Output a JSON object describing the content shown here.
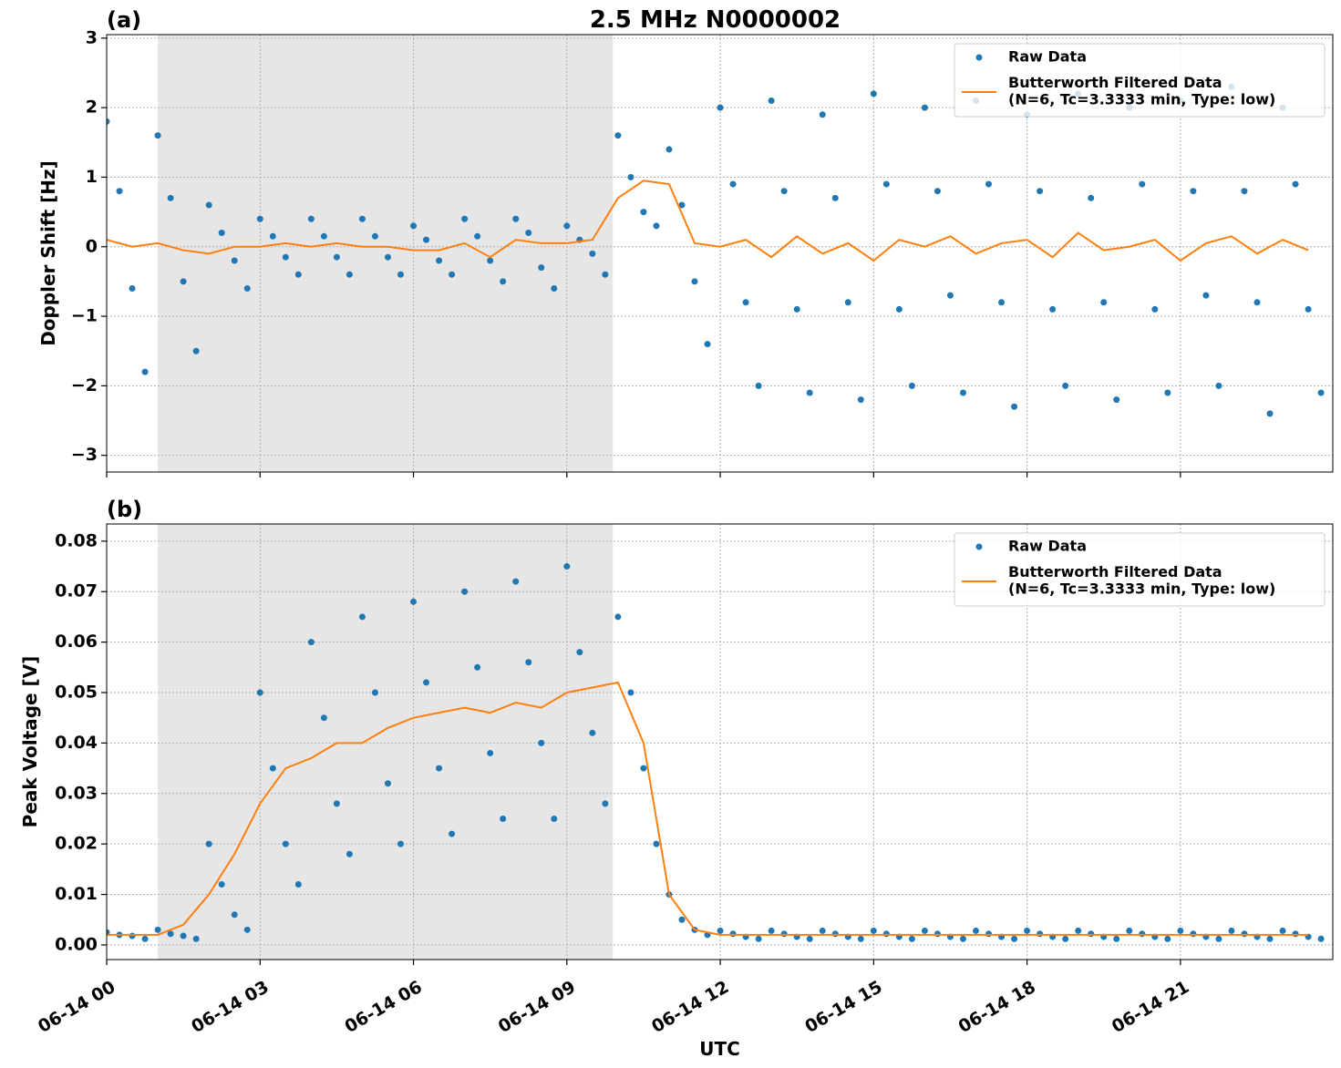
{
  "chart_data": [
    {
      "type": "line",
      "panel_label": "(a)",
      "title": "2.5 MHz N0000002",
      "ylabel": "Doppler Shift [Hz]",
      "xlim": [
        0,
        23.98
      ],
      "ylim": [
        -3.24,
        3.05
      ],
      "xticks": [
        0,
        3,
        6,
        9,
        12,
        15,
        18,
        21
      ],
      "yticks": [
        {
          "value": -3,
          "label": "−3"
        },
        {
          "value": -2,
          "label": "−2"
        },
        {
          "value": -1,
          "label": "−1"
        },
        0,
        1,
        2,
        3
      ],
      "grid": true,
      "legend": "upper right",
      "shaded_span": [
        1.0,
        9.9
      ],
      "series": [
        {
          "name": "Raw Data",
          "type": "scatter",
          "color": "#1f77b4",
          "x": [
            0,
            0.25,
            0.5,
            0.75,
            1,
            1.25,
            1.5,
            1.75,
            2,
            2.25,
            2.5,
            2.75,
            3,
            3.25,
            3.5,
            3.75,
            4,
            4.25,
            4.5,
            4.75,
            5,
            5.25,
            5.5,
            5.75,
            6,
            6.25,
            6.5,
            6.75,
            7,
            7.25,
            7.5,
            7.75,
            8,
            8.25,
            8.5,
            8.75,
            9,
            9.25,
            9.5,
            9.75,
            10,
            10.25,
            10.5,
            10.75,
            11,
            11.25,
            11.5,
            11.75,
            12,
            12.25,
            12.5,
            12.75,
            13,
            13.25,
            13.5,
            13.75,
            14,
            14.25,
            14.5,
            14.75,
            15,
            15.25,
            15.5,
            15.75,
            16,
            16.25,
            16.5,
            16.75,
            17,
            17.25,
            17.5,
            17.75,
            18,
            18.25,
            18.5,
            18.75,
            19,
            19.25,
            19.5,
            19.75,
            20,
            20.25,
            20.5,
            20.75,
            21,
            21.25,
            21.5,
            21.75,
            22,
            22.25,
            22.5,
            22.75,
            23,
            23.25,
            23.5,
            23.75
          ],
          "values": [
            1.8,
            0.8,
            -0.6,
            -1.8,
            1.6,
            0.7,
            -0.5,
            -1.5,
            0.6,
            0.2,
            -0.2,
            -0.6,
            0.4,
            0.15,
            -0.15,
            -0.4,
            0.4,
            0.15,
            -0.15,
            -0.4,
            0.4,
            0.15,
            -0.15,
            -0.4,
            0.3,
            0.1,
            -0.2,
            -0.4,
            0.4,
            0.15,
            -0.2,
            -0.5,
            0.4,
            0.2,
            -0.3,
            -0.6,
            0.3,
            0.1,
            -0.1,
            -0.4,
            1.6,
            1.0,
            0.5,
            0.3,
            1.4,
            0.6,
            -0.5,
            -1.4,
            2.0,
            0.9,
            -0.8,
            -2.0,
            2.1,
            0.8,
            -0.9,
            -2.1,
            1.9,
            0.7,
            -0.8,
            -2.2,
            2.2,
            0.9,
            -0.9,
            -2.0,
            2.0,
            0.8,
            -0.7,
            -2.1,
            2.1,
            0.9,
            -0.8,
            -2.3,
            1.9,
            0.8,
            -0.9,
            -2.0,
            2.2,
            0.7,
            -0.8,
            -2.2,
            2.0,
            0.9,
            -0.9,
            -2.1,
            2.1,
            0.8,
            -0.7,
            -2.0,
            2.3,
            0.8,
            -0.8,
            -2.4,
            2.0,
            0.9,
            -0.9,
            -2.1
          ]
        },
        {
          "name": "Butterworth Filtered Data\n(N=6, Tc=3.3333 min, Type: low)",
          "type": "line",
          "color": "#ff7f0e",
          "x": [
            0,
            0.5,
            1,
            1.5,
            2,
            2.5,
            3,
            3.5,
            4,
            4.5,
            5,
            5.5,
            6,
            6.5,
            7,
            7.5,
            8,
            8.5,
            9,
            9.5,
            10,
            10.5,
            11,
            11.5,
            12,
            12.5,
            13,
            13.5,
            14,
            14.5,
            15,
            15.5,
            16,
            16.5,
            17,
            17.5,
            18,
            18.5,
            19,
            19.5,
            20,
            20.5,
            21,
            21.5,
            22,
            22.5,
            23,
            23.5
          ],
          "values": [
            0.1,
            0,
            0.05,
            -0.05,
            -0.1,
            0,
            0,
            0.05,
            0,
            0.05,
            0,
            0,
            -0.05,
            -0.05,
            0.05,
            -0.15,
            0.1,
            0.05,
            0.05,
            0.1,
            0.7,
            0.95,
            0.9,
            0.05,
            0,
            0.1,
            -0.15,
            0.15,
            -0.1,
            0.05,
            -0.2,
            0.1,
            0,
            0.15,
            -0.1,
            0.05,
            0.1,
            -0.15,
            0.2,
            -0.05,
            0,
            0.1,
            -0.2,
            0.05,
            0.15,
            -0.1,
            0.1,
            -0.05
          ]
        }
      ]
    },
    {
      "type": "line",
      "panel_label": "(b)",
      "ylabel": "Peak Voltage [V]",
      "xlabel": "UTC",
      "xlim": [
        0,
        23.98
      ],
      "ylim": [
        -0.0029,
        0.0834
      ],
      "xticks": [
        {
          "value": 0,
          "label": "06-14 00"
        },
        {
          "value": 3,
          "label": "06-14 03"
        },
        {
          "value": 6,
          "label": "06-14 06"
        },
        {
          "value": 9,
          "label": "06-14 09"
        },
        {
          "value": 12,
          "label": "06-14 12"
        },
        {
          "value": 15,
          "label": "06-14 15"
        },
        {
          "value": 18,
          "label": "06-14 18"
        },
        {
          "value": 21,
          "label": "06-14 21"
        }
      ],
      "yticks": [
        {
          "value": 0,
          "label": "0.00"
        },
        0.01,
        0.02,
        0.03,
        0.04,
        0.05,
        0.06,
        0.07,
        0.08
      ],
      "grid": true,
      "legend": "upper right",
      "shaded_span": [
        1.0,
        9.9
      ],
      "series": [
        {
          "name": "Raw Data",
          "type": "scatter",
          "color": "#1f77b4",
          "x": [
            0,
            0.25,
            0.5,
            0.75,
            1,
            1.25,
            1.5,
            1.75,
            2,
            2.25,
            2.5,
            2.75,
            3,
            3.25,
            3.5,
            3.75,
            4,
            4.25,
            4.5,
            4.75,
            5,
            5.25,
            5.5,
            5.75,
            6,
            6.25,
            6.5,
            6.75,
            7,
            7.25,
            7.5,
            7.75,
            8,
            8.25,
            8.5,
            8.75,
            9,
            9.25,
            9.5,
            9.75,
            10,
            10.25,
            10.5,
            10.75,
            11,
            11.25,
            11.5,
            11.75,
            12,
            12.25,
            12.5,
            12.75,
            13,
            13.25,
            13.5,
            13.75,
            14,
            14.25,
            14.5,
            14.75,
            15,
            15.25,
            15.5,
            15.75,
            16,
            16.25,
            16.5,
            16.75,
            17,
            17.25,
            17.5,
            17.75,
            18,
            18.25,
            18.5,
            18.75,
            19,
            19.25,
            19.5,
            19.75,
            20,
            20.25,
            20.5,
            20.75,
            21,
            21.25,
            21.5,
            21.75,
            22,
            22.25,
            22.5,
            22.75,
            23,
            23.25,
            23.5,
            23.75
          ],
          "values": [
            0.0025,
            0.002,
            0.0018,
            0.0012,
            0.003,
            0.0022,
            0.0018,
            0.0012,
            0.02,
            0.012,
            0.006,
            0.003,
            0.05,
            0.035,
            0.02,
            0.012,
            0.06,
            0.045,
            0.028,
            0.018,
            0.065,
            0.05,
            0.032,
            0.02,
            0.068,
            0.052,
            0.035,
            0.022,
            0.07,
            0.055,
            0.038,
            0.025,
            0.072,
            0.056,
            0.04,
            0.025,
            0.075,
            0.058,
            0.042,
            0.028,
            0.065,
            0.05,
            0.035,
            0.02,
            0.01,
            0.005,
            0.003,
            0.002,
            0.0028,
            0.0022,
            0.0016,
            0.0012,
            0.0028,
            0.0022,
            0.0016,
            0.0012,
            0.0028,
            0.0022,
            0.0016,
            0.0012,
            0.0028,
            0.0022,
            0.0016,
            0.0012,
            0.0028,
            0.0022,
            0.0016,
            0.0012,
            0.0028,
            0.0022,
            0.0016,
            0.0012,
            0.0028,
            0.0022,
            0.0016,
            0.0012,
            0.0028,
            0.0022,
            0.0016,
            0.0012,
            0.0028,
            0.0022,
            0.0016,
            0.0012,
            0.0028,
            0.0022,
            0.0016,
            0.0012,
            0.0028,
            0.0022,
            0.0016,
            0.0012,
            0.0028,
            0.0022,
            0.0016,
            0.0012
          ]
        },
        {
          "name": "Butterworth Filtered Data\n(N=6, Tc=3.3333 min, Type: low)",
          "type": "line",
          "color": "#ff7f0e",
          "x": [
            0,
            0.5,
            1,
            1.5,
            2,
            2.5,
            3,
            3.5,
            4,
            4.5,
            5,
            5.5,
            6,
            6.5,
            7,
            7.5,
            8,
            8.5,
            9,
            9.5,
            10,
            10.5,
            11,
            11.5,
            12,
            12.5,
            13,
            13.5,
            14,
            14.5,
            15,
            15.5,
            16,
            16.5,
            17,
            17.5,
            18,
            18.5,
            19,
            19.5,
            20,
            20.5,
            21,
            21.5,
            22,
            22.5,
            23,
            23.5
          ],
          "values": [
            0.002,
            0.002,
            0.002,
            0.004,
            0.01,
            0.018,
            0.028,
            0.035,
            0.037,
            0.04,
            0.04,
            0.043,
            0.045,
            0.046,
            0.047,
            0.046,
            0.048,
            0.047,
            0.05,
            0.051,
            0.052,
            0.04,
            0.01,
            0.003,
            0.002,
            0.002,
            0.002,
            0.002,
            0.002,
            0.002,
            0.002,
            0.002,
            0.002,
            0.002,
            0.002,
            0.002,
            0.002,
            0.002,
            0.002,
            0.002,
            0.002,
            0.002,
            0.002,
            0.002,
            0.002,
            0.002,
            0.002,
            0.002
          ]
        }
      ]
    }
  ]
}
